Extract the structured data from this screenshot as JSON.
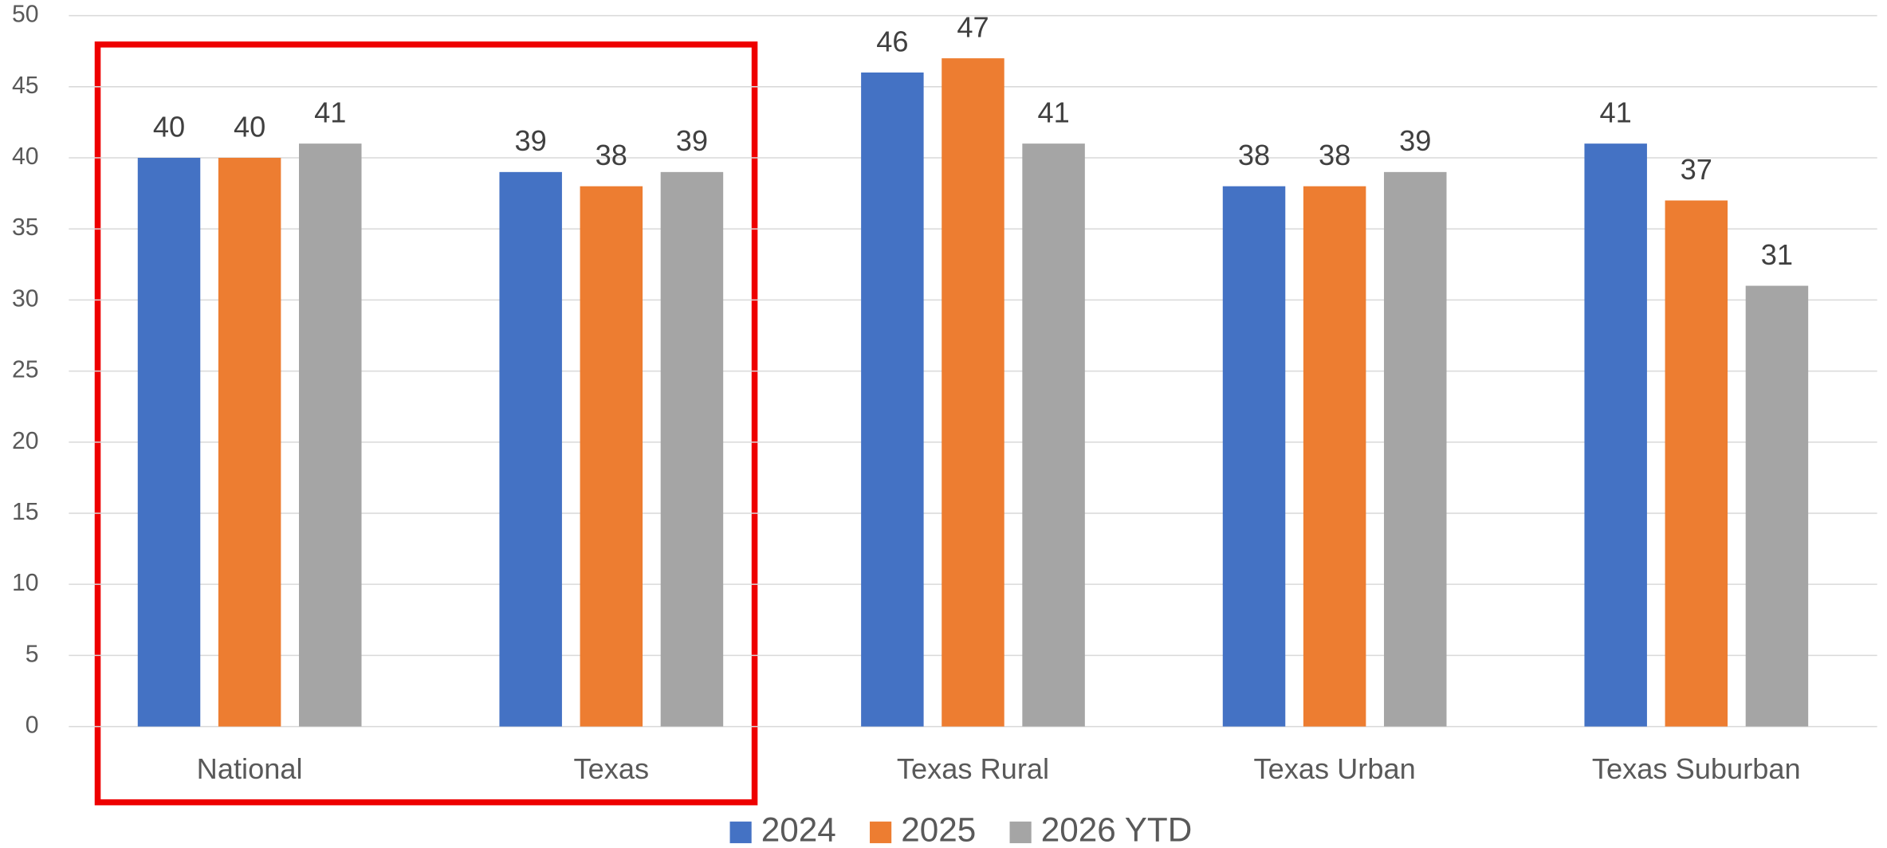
{
  "chart_data": {
    "type": "bar",
    "categories": [
      "National",
      "Texas",
      "Texas Rural",
      "Texas Urban",
      "Texas Suburban"
    ],
    "series": [
      {
        "name": "2024",
        "color": "#4472c4",
        "values": [
          40,
          39,
          46,
          38,
          41
        ]
      },
      {
        "name": "2025",
        "color": "#ed7d31",
        "values": [
          40,
          38,
          47,
          38,
          37
        ]
      },
      {
        "name": "2026 YTD",
        "color": "#a5a5a5",
        "values": [
          41,
          39,
          41,
          39,
          31
        ]
      }
    ],
    "ylim": [
      0,
      50
    ],
    "yticks": [
      0,
      5,
      10,
      15,
      20,
      25,
      30,
      35,
      40,
      45,
      50
    ],
    "grid": true,
    "legend": "bottom"
  }
}
